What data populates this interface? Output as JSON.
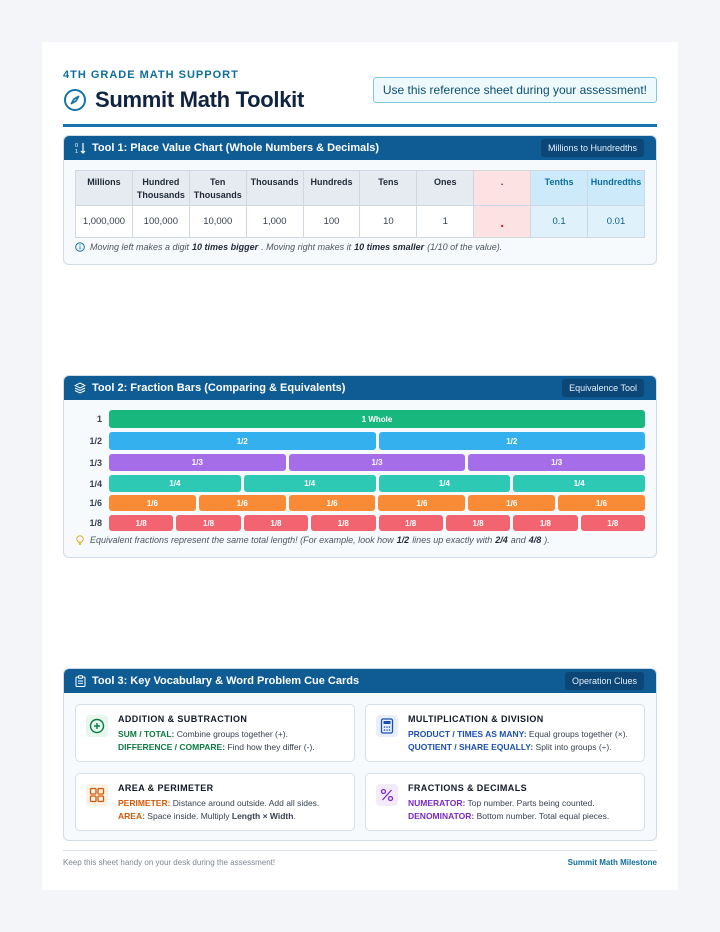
{
  "header": {
    "eyebrow": "4TH GRADE MATH SUPPORT",
    "title": "Summit Math Toolkit",
    "callout": "Use this reference sheet during your assessment!"
  },
  "tool1": {
    "title": "Tool 1: Place Value Chart (Whole Numbers & Decimals)",
    "badge": "Millions to Hundredths",
    "headers": [
      "Millions",
      "Hundred Thousands",
      "Ten Thousands",
      "Thousands",
      "Hundreds",
      "Tens",
      "Ones",
      ".",
      "Tenths",
      "Hundredths"
    ],
    "values": [
      "1,000,000",
      "100,000",
      "10,000",
      "1,000",
      "100",
      "10",
      "1",
      ".",
      "0.1",
      "0.01"
    ],
    "note": {
      "part1": "Moving left makes a digit",
      "bold1": "10 times bigger",
      "part2": ". Moving right makes it",
      "bold2": "10 times smaller",
      "part3": "(1/10 of the value)."
    }
  },
  "tool2": {
    "title": "Tool 2: Fraction Bars (Comparing & Equivalents)",
    "badge": "Equivalence Tool",
    "rows": [
      {
        "label": "1",
        "segments": [
          "1 Whole"
        ],
        "color": "#17b77e"
      },
      {
        "label": "1/2",
        "segments": [
          "1/2",
          "1/2"
        ],
        "color": "#35b0ee"
      },
      {
        "label": "1/3",
        "segments": [
          "1/3",
          "1/3",
          "1/3"
        ],
        "color": "#a66de8"
      },
      {
        "label": "1/4",
        "segments": [
          "1/4",
          "1/4",
          "1/4",
          "1/4"
        ],
        "color": "#2ec9b4"
      },
      {
        "label": "1/6",
        "segments": [
          "1/6",
          "1/6",
          "1/6",
          "1/6",
          "1/6",
          "1/6"
        ],
        "color": "#f98b37"
      },
      {
        "label": "1/8",
        "segments": [
          "1/8",
          "1/8",
          "1/8",
          "1/8",
          "1/8",
          "1/8",
          "1/8",
          "1/8"
        ],
        "color": "#f2646f"
      }
    ],
    "note": {
      "part1": "Equivalent fractions represent the same total length! (For example, look how",
      "bold1": "1/2",
      "part2": "lines up exactly with",
      "bold2": "2/4",
      "part3": "and",
      "bold3": "4/8",
      "part4": ")."
    }
  },
  "tool3": {
    "title": "Tool 3: Key Vocabulary & Word Problem Cue Cards",
    "badge": "Operation Clues",
    "cards": [
      {
        "title": "ADDITION & SUBTRACTION",
        "icon": "plus-circle-icon",
        "color": "#0e7a43",
        "lines": [
          {
            "key": "SUM / TOTAL:",
            "text": "Combine groups together (+)."
          },
          {
            "key": "DIFFERENCE / COMPARE:",
            "text": "Find how they differ (-)."
          }
        ]
      },
      {
        "title": "MULTIPLICATION & DIVISION",
        "icon": "calculator-icon",
        "color": "#1b4fb3",
        "lines": [
          {
            "key": "PRODUCT / TIMES AS MANY:",
            "text": "Equal groups together (×)."
          },
          {
            "key": "QUOTIENT / SHARE EQUALLY:",
            "text": "Split into groups (÷)."
          }
        ]
      },
      {
        "title": "AREA & PERIMETER",
        "icon": "grid-icon",
        "color": "#d15a07",
        "lines": [
          {
            "key": "PERIMETER:",
            "text": "Distance around outside. Add all sides."
          },
          {
            "key": "AREA:",
            "text": "Space inside. Multiply",
            "bold": "Length × Width",
            "tail": "."
          }
        ]
      },
      {
        "title": "FRACTIONS & DECIMALS",
        "icon": "percent-icon",
        "color": "#7a2bc2",
        "lines": [
          {
            "key": "NUMERATOR:",
            "text": "Top number. Parts being counted."
          },
          {
            "key": "DENOMINATOR:",
            "text": "Bottom number. Total equal pieces."
          }
        ]
      }
    ]
  },
  "footer": {
    "left": "Keep this sheet handy on your desk during the assessment!",
    "right": "Summit Math Milestone"
  }
}
